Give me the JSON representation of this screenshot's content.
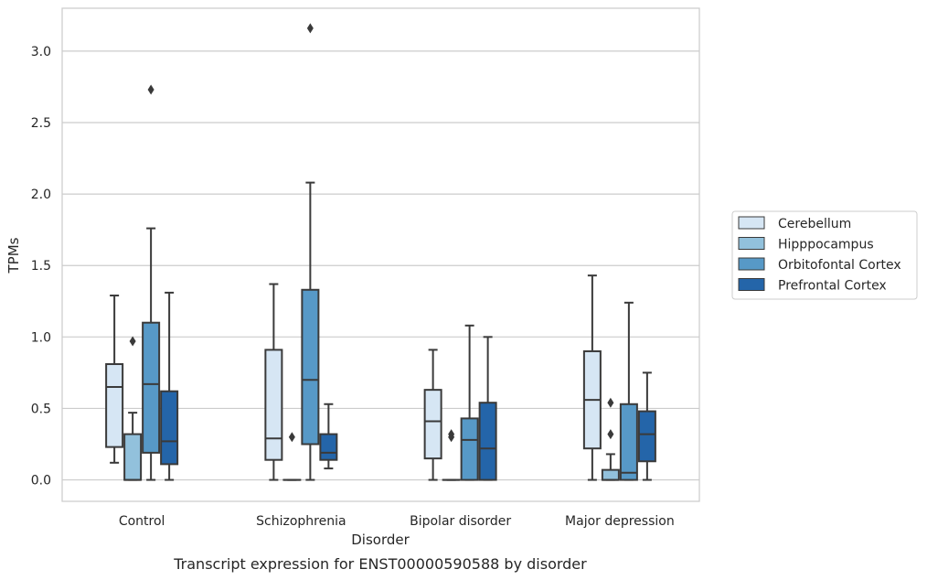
{
  "chart_data": {
    "type": "box",
    "title": "",
    "caption": "Transcript expression for ENST00000590588 by disorder",
    "xlabel": "Disorder",
    "ylabel": "TPMs",
    "ylim": [
      -0.15,
      3.3
    ],
    "yticks": [
      0.0,
      0.5,
      1.0,
      1.5,
      2.0,
      2.5,
      3.0
    ],
    "ytick_labels": [
      "0.0",
      "0.5",
      "1.0",
      "1.5",
      "2.0",
      "2.5",
      "3.0"
    ],
    "grid": "horizontal",
    "legend_position": "outside-right",
    "categories": [
      "Control",
      "Schizophrenia",
      "Bipolar disorder",
      "Major depression"
    ],
    "series": [
      {
        "name": "Cerebellum",
        "color": "#d6e6f4",
        "boxes": [
          {
            "whislo": 0.12,
            "q1": 0.23,
            "med": 0.65,
            "q3": 0.81,
            "whishi": 1.29,
            "fliers": []
          },
          {
            "whislo": 0.0,
            "q1": 0.14,
            "med": 0.29,
            "q3": 0.91,
            "whishi": 1.37,
            "fliers": []
          },
          {
            "whislo": 0.0,
            "q1": 0.15,
            "med": 0.41,
            "q3": 0.63,
            "whishi": 0.91,
            "fliers": []
          },
          {
            "whislo": 0.0,
            "q1": 0.22,
            "med": 0.56,
            "q3": 0.9,
            "whishi": 1.43,
            "fliers": []
          }
        ]
      },
      {
        "name": "Hipppocampus",
        "color": "#92c1dc",
        "boxes": [
          {
            "whislo": 0.0,
            "q1": 0.0,
            "med": 0.0,
            "q3": 0.32,
            "whishi": 0.47,
            "fliers": [
              0.97
            ]
          },
          {
            "whislo": 0.0,
            "q1": 0.0,
            "med": 0.0,
            "q3": 0.0,
            "whishi": 0.0,
            "fliers": [
              0.3
            ]
          },
          {
            "whislo": 0.0,
            "q1": 0.0,
            "med": 0.0,
            "q3": 0.0,
            "whishi": 0.0,
            "fliers": [
              0.3,
              0.32
            ]
          },
          {
            "whislo": 0.0,
            "q1": 0.0,
            "med": 0.0,
            "q3": 0.07,
            "whishi": 0.18,
            "fliers": [
              0.32,
              0.54
            ]
          }
        ]
      },
      {
        "name": "Orbitofontal Cortex",
        "color": "#5799c7",
        "boxes": [
          {
            "whislo": 0.0,
            "q1": 0.19,
            "med": 0.67,
            "q3": 1.1,
            "whishi": 1.76,
            "fliers": [
              2.73
            ]
          },
          {
            "whislo": 0.0,
            "q1": 0.25,
            "med": 0.7,
            "q3": 1.33,
            "whishi": 2.08,
            "fliers": [
              3.16
            ]
          },
          {
            "whislo": 0.0,
            "q1": 0.0,
            "med": 0.28,
            "q3": 0.43,
            "whishi": 1.08,
            "fliers": []
          },
          {
            "whislo": 0.0,
            "q1": 0.0,
            "med": 0.05,
            "q3": 0.53,
            "whishi": 1.24,
            "fliers": []
          }
        ]
      },
      {
        "name": "Prefrontal Cortex",
        "color": "#2465a9",
        "boxes": [
          {
            "whislo": 0.0,
            "q1": 0.11,
            "med": 0.27,
            "q3": 0.62,
            "whishi": 1.31,
            "fliers": []
          },
          {
            "whislo": 0.08,
            "q1": 0.14,
            "med": 0.19,
            "q3": 0.32,
            "whishi": 0.53,
            "fliers": []
          },
          {
            "whislo": 0.0,
            "q1": 0.0,
            "med": 0.22,
            "q3": 0.54,
            "whishi": 1.0,
            "fliers": []
          },
          {
            "whislo": 0.0,
            "q1": 0.13,
            "med": 0.32,
            "q3": 0.48,
            "whishi": 0.75,
            "fliers": []
          }
        ]
      }
    ]
  }
}
